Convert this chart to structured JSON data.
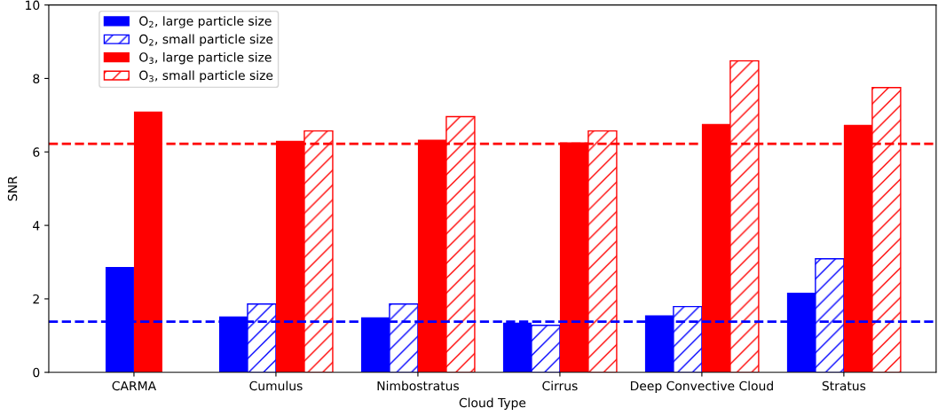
{
  "chart_data": {
    "type": "bar",
    "xlabel": "Cloud Type",
    "ylabel": "SNR",
    "categories": [
      "CARMA",
      "Cumulus",
      "Nimbostratus",
      "Cirrus",
      "Deep Convective Cloud",
      "Stratus"
    ],
    "series": [
      {
        "name": "O$_{2}$, large particle size",
        "color": "#0000ff",
        "values": [
          2.87,
          1.52,
          1.5,
          1.35,
          1.55,
          2.17
        ]
      },
      {
        "name": "O$_{2}$, small particle size",
        "color": "#0000ff",
        "values": [
          null,
          1.86,
          1.86,
          1.28,
          1.79,
          3.09
        ]
      },
      {
        "name": "O$_{3}$, large particle size",
        "color": "#ff0000",
        "values": [
          7.1,
          6.3,
          6.33,
          6.26,
          6.76,
          6.74
        ]
      },
      {
        "name": "O$_{3}$, small particle size",
        "color": "#ff0000",
        "values": [
          null,
          6.57,
          6.96,
          6.57,
          8.48,
          7.75
        ]
      }
    ],
    "ylim": [
      0,
      10
    ],
    "yticks": [
      0,
      2,
      4,
      6,
      8,
      10
    ],
    "ref_lines": [
      {
        "axis": "y",
        "value": 6.22,
        "color": "#ff0000",
        "line_style": "dashed"
      },
      {
        "axis": "y",
        "value": 1.38,
        "color": "#0000ff",
        "line_style": "dashed"
      }
    ],
    "legend": "top left",
    "grid": false
  }
}
